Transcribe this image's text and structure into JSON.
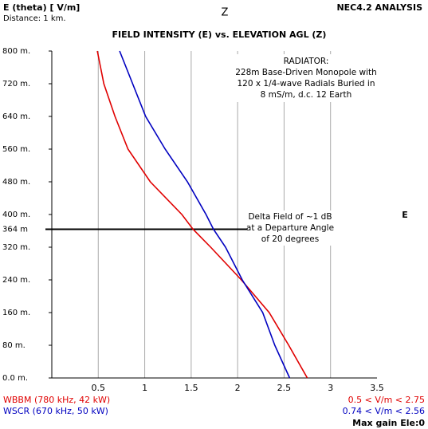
{
  "chart_data": {
    "type": "line",
    "title": "FIELD INTENSITY (E) vs. ELEVATION AGL (Z)",
    "x_label": "E (theta) [ V/m]",
    "subtitle": "Distance: 1 km.",
    "y_label": "Z",
    "right_label": "E",
    "corner_title": "NEC4.2 ANALYSIS",
    "radiator_note": [
      "RADIATOR:",
      "228m Base-Driven Monopole with",
      "120 x 1/4-wave Radials Buried in",
      "8 mS/m, d.c. 12 Earth"
    ],
    "delta_note": [
      "Delta Field of ~1 dB",
      "at a Departure Angle",
      "of 20 degrees"
    ],
    "y": [
      0,
      80,
      160,
      240,
      320,
      364,
      400,
      480,
      560,
      640,
      720,
      800
    ],
    "series": [
      {
        "name": "WBBM (780 kHz, 42 kW)",
        "color": "#e00000",
        "range_label": "0.5 <  V/m < 2.75",
        "values": [
          2.75,
          2.55,
          2.34,
          2.04,
          1.71,
          1.52,
          1.4,
          1.06,
          0.82,
          0.68,
          0.56,
          0.49
        ]
      },
      {
        "name": "WSCR (670 kHz, 50 kW)",
        "color": "#0000c0",
        "range_label": "0.74 <  V/m < 2.56",
        "values": [
          2.56,
          2.4,
          2.27,
          2.05,
          1.87,
          1.74,
          1.66,
          1.46,
          1.22,
          1.01,
          0.87,
          0.73
        ]
      }
    ],
    "footer": "Max gain Ele:0",
    "xlim": [
      0,
      3.5
    ],
    "xticks": [
      0.5,
      1,
      1.5,
      2,
      2.5,
      3,
      3.5
    ],
    "ylim": [
      0,
      800
    ],
    "yticks": [
      {
        "value": 0,
        "label": "0.0 m."
      },
      {
        "value": 80,
        "label": "80 m."
      },
      {
        "value": 160,
        "label": "160 m."
      },
      {
        "value": 240,
        "label": "240 m."
      },
      {
        "value": 320,
        "label": "320 m."
      },
      {
        "value": 364,
        "label": "364 m"
      },
      {
        "value": 400,
        "label": "400 m."
      },
      {
        "value": 480,
        "label": "480 m."
      },
      {
        "value": 560,
        "label": "560 m."
      },
      {
        "value": 640,
        "label": "640 m."
      },
      {
        "value": 720,
        "label": "720 m."
      },
      {
        "value": 800,
        "label": "800 m."
      }
    ],
    "reference_line": 364,
    "grid": true
  }
}
